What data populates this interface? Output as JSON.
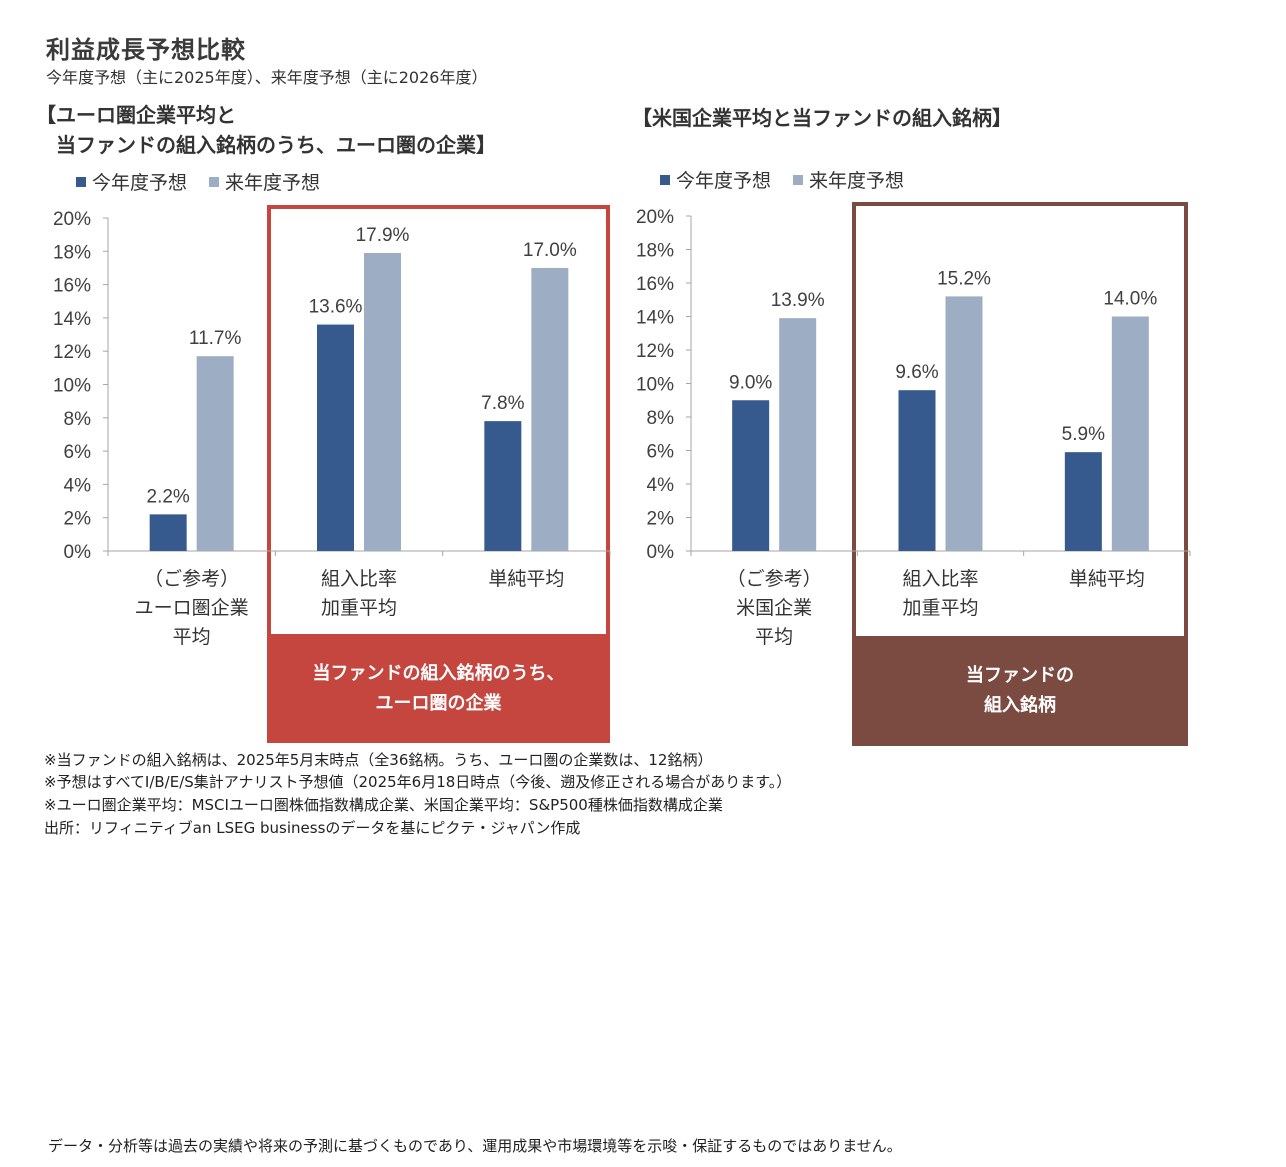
{
  "title": "利益成長予想比較",
  "subtitle": "今年度予想（主に2025年度）、来年度予想（主に2026年度）",
  "colors": {
    "this_year": "#365a8e",
    "next_year": "#9daec4",
    "eu_highlight": "#c4463e",
    "us_highlight": "#7b4a40",
    "axis": "#a6a6a6",
    "text": "#333333"
  },
  "legend": [
    {
      "label": "今年度予想",
      "color": "#365a8e"
    },
    {
      "label": "来年度予想",
      "color": "#9daec4"
    }
  ],
  "eu_section": {
    "title_line1": "【ユーロ圏企業平均と",
    "title_line2": "　当ファンドの組入銘柄のうち、ユーロ圏の企業】",
    "banner_line1": "当ファンドの組入銘柄のうち、",
    "banner_line2": "ユーロ圏の企業"
  },
  "us_section": {
    "title": "【米国企業平均と当ファンドの組入銘柄】",
    "banner_line1": "当ファンドの",
    "banner_line2": "組入銘柄"
  },
  "chart_data": [
    {
      "type": "bar",
      "title": "ユーロ圏企業平均と当ファンドの組入銘柄のうち、ユーロ圏の企業",
      "categories": [
        [
          "（ご参考）",
          "ユーロ圏企業",
          "平均"
        ],
        [
          "組入比率",
          "加重平均"
        ],
        [
          "単純平均"
        ]
      ],
      "series": [
        {
          "name": "今年度予想",
          "values": [
            2.2,
            13.6,
            7.8
          ],
          "labels": [
            "2.2%",
            "13.6%",
            "7.8%"
          ]
        },
        {
          "name": "来年度予想",
          "values": [
            11.7,
            17.9,
            17.0
          ],
          "labels": [
            "11.7%",
            "17.9%",
            "17.0%"
          ]
        }
      ],
      "yticks": [
        "0%",
        "2%",
        "4%",
        "6%",
        "8%",
        "10%",
        "12%",
        "14%",
        "16%",
        "18%",
        "20%"
      ],
      "ylim": [
        0,
        20
      ],
      "xlabel": "",
      "ylabel": "",
      "legend_position": "top-left",
      "grid": false
    },
    {
      "type": "bar",
      "title": "米国企業平均と当ファンドの組入銘柄",
      "categories": [
        [
          "（ご参考）",
          "米国企業",
          "平均"
        ],
        [
          "組入比率",
          "加重平均"
        ],
        [
          "単純平均"
        ]
      ],
      "series": [
        {
          "name": "今年度予想",
          "values": [
            9.0,
            9.6,
            5.9
          ],
          "labels": [
            "9.0%",
            "9.6%",
            "5.9%"
          ]
        },
        {
          "name": "来年度予想",
          "values": [
            13.9,
            15.2,
            14.0
          ],
          "labels": [
            "13.9%",
            "15.2%",
            "14.0%"
          ]
        }
      ],
      "yticks": [
        "0%",
        "2%",
        "4%",
        "6%",
        "8%",
        "10%",
        "12%",
        "14%",
        "16%",
        "18%",
        "20%"
      ],
      "ylim": [
        0,
        20
      ],
      "xlabel": "",
      "ylabel": "",
      "legend_position": "top-left",
      "grid": false
    }
  ],
  "notes": [
    "※当ファンドの組入銘柄は、2025年5月末時点（全36銘柄。うち、ユーロ圏の企業数は、12銘柄）",
    "※予想はすべてI/B/E/S集計アナリスト予想値（2025年6月18日時点（今後、遡及修正される場合があります。）",
    "※ユーロ圏企業平均：MSCIユーロ圏株価指数構成企業、米国企業平均：S&P500種株価指数構成企業",
    "出所：リフィニティブan LSEG businessのデータを基にピクテ・ジャパン作成"
  ],
  "disclaimer": "データ・分析等は過去の実績や将来の予測に基づくものであり、運用成果や市場環境等を示唆・保証するものではありません。"
}
